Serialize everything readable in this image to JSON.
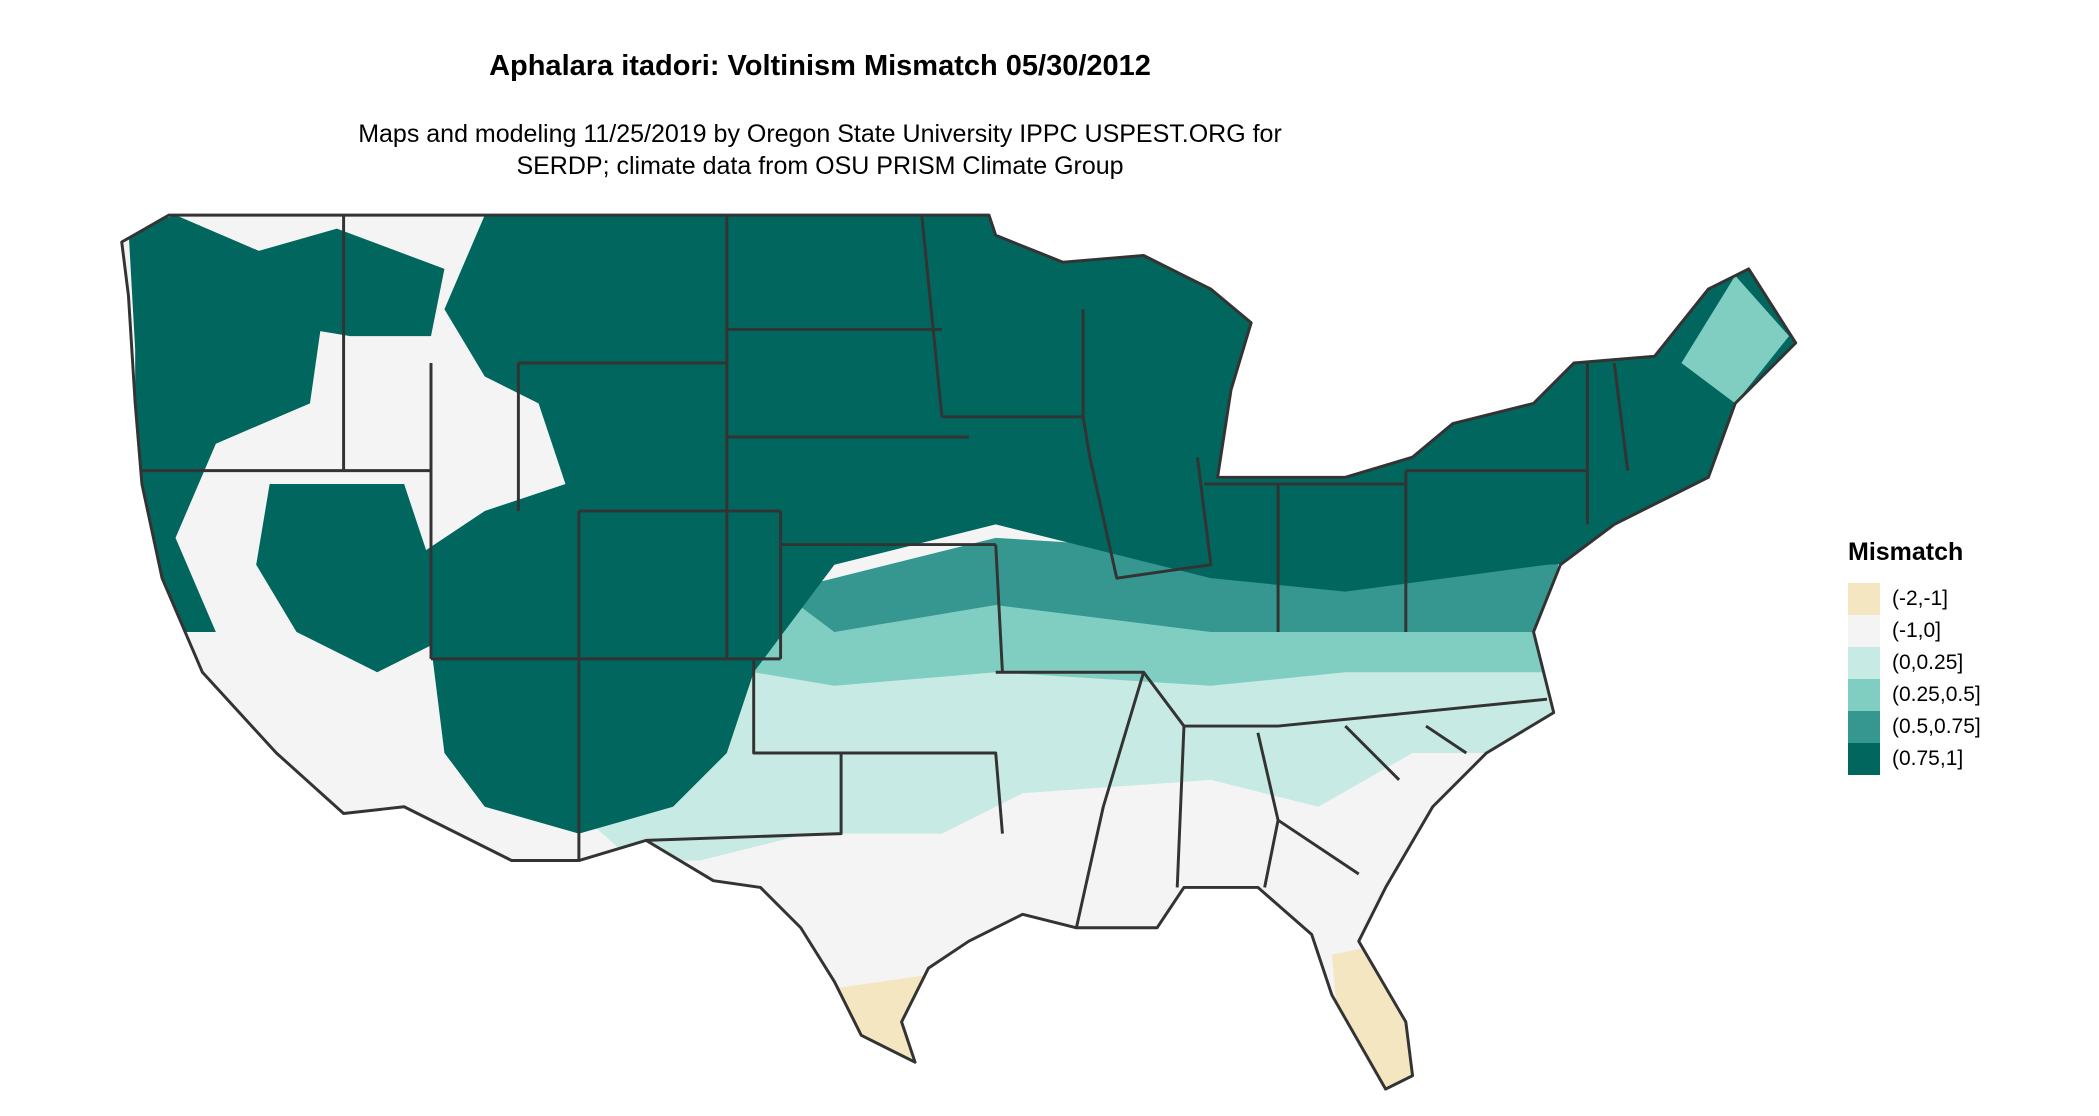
{
  "title": "Aphalara itadori: Voltinism Mismatch 05/30/2012",
  "subtitle_line1": "Maps and modeling 11/25/2019 by Oregon State University IPPC USPEST.ORG for",
  "subtitle_line2": "SERDP; climate data from OSU PRISM Climate Group",
  "legend": {
    "title": "Mismatch",
    "items": [
      {
        "label": "(-2,-1]",
        "color": "#f5e6c2"
      },
      {
        "label": "(-1,0]",
        "color": "#f4f4f4"
      },
      {
        "label": "(0,0.25]",
        "color": "#c7eae4"
      },
      {
        "label": "(0.25,0.5]",
        "color": "#80cdc1"
      },
      {
        "label": "(0.5,0.75]",
        "color": "#35978f"
      },
      {
        "label": "(0.75,1]",
        "color": "#01665e"
      }
    ]
  },
  "border_color": "#333333"
}
